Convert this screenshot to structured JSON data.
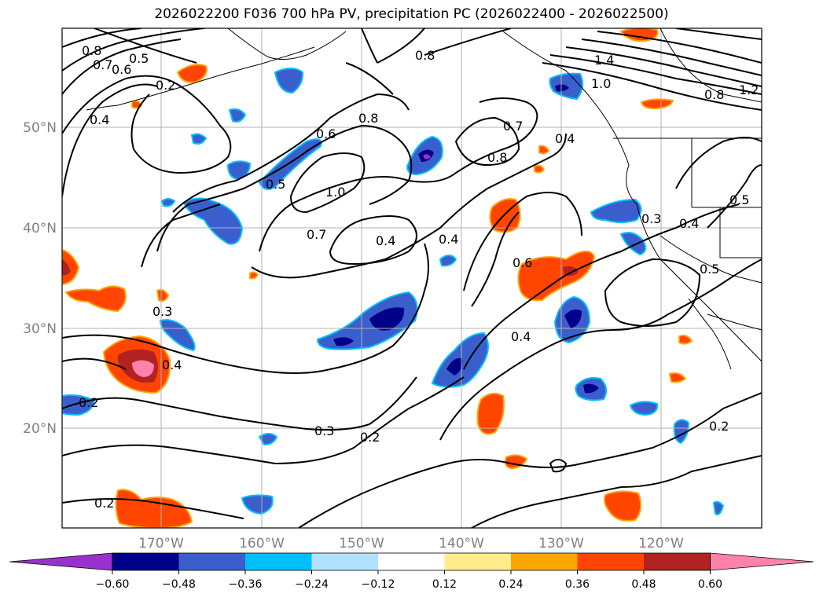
{
  "title": "2026022200 F036 700 hPa PV, precipitation PC (2026022400 - 2026022500)",
  "lat_ticks": [
    "50°N",
    "40°N",
    "30°N",
    "20°N"
  ],
  "lon_ticks": [
    "170°W",
    "160°W",
    "150°W",
    "140°W",
    "130°W",
    "120°W"
  ],
  "colorbar": {
    "ticks": [
      "−0.60",
      "−0.48",
      "−0.36",
      "−0.24",
      "−0.12",
      "0.12",
      "0.24",
      "0.36",
      "0.48",
      "0.60"
    ],
    "colors": [
      "#9932CC",
      "#00008B",
      "#3A5FCD",
      "#00BFFF",
      "#B0E2FF",
      "#FFFFFF",
      "#FFEC8B",
      "#FFA500",
      "#FF4500",
      "#B22222",
      "#FF82AB"
    ]
  },
  "contour_labels": [
    "0.8",
    "0.7",
    "0.6",
    "0.5",
    "0.2",
    "0.4",
    "0.8",
    "1.4",
    "1.0",
    "1.2",
    "0.8",
    "0.6",
    "0.8",
    "0.7",
    "0.8",
    "0.4",
    "0.5",
    "1.0",
    "0.7",
    "0.4",
    "0.4",
    "0.3",
    "0.4",
    "0.5",
    "0.5",
    "0.6",
    "0.3",
    "0.4",
    "0.4",
    "0.2",
    "0.3",
    "0.2",
    "0.2",
    "0.2"
  ]
}
